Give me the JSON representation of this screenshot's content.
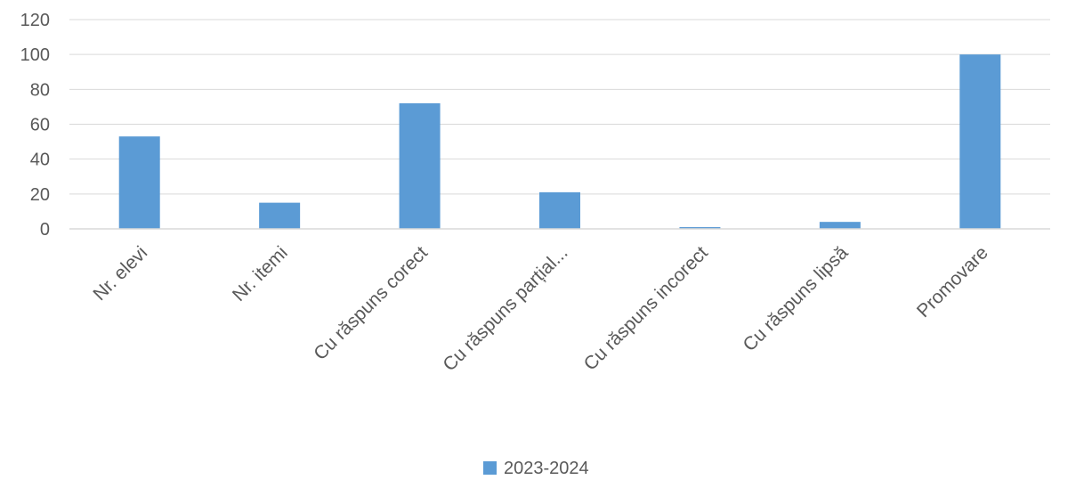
{
  "chart_data": {
    "type": "bar",
    "categories": [
      "Nr. elevi",
      "Nr. itemi",
      "Cu răspuns corect",
      "Cu răspuns parțial...",
      "Cu răspuns incorect",
      "Cu răspuns lipsă",
      "Promovare"
    ],
    "series": [
      {
        "name": "2023-2024",
        "values": [
          53,
          15,
          72,
          21,
          1,
          4,
          100
        ],
        "color": "#5B9BD5"
      }
    ],
    "title": "",
    "xlabel": "",
    "ylabel": "",
    "ylim": [
      0,
      120
    ],
    "yticks": [
      0,
      20,
      40,
      60,
      80,
      100,
      120
    ],
    "grid": true,
    "legend": "bottom",
    "colors": {
      "bar": "#5B9BD5",
      "grid": "#D9D9D9",
      "text": "#595959"
    }
  }
}
